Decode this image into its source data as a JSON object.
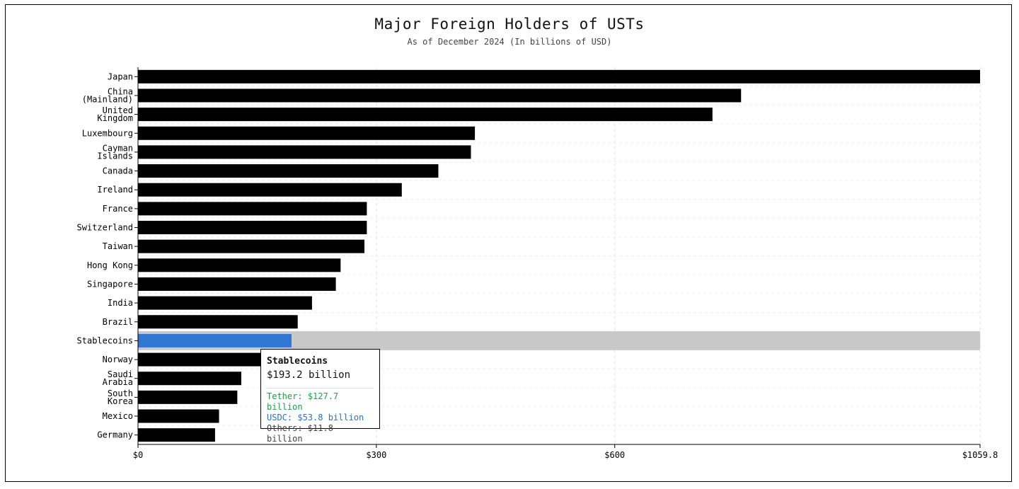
{
  "chart_data": {
    "type": "bar",
    "orientation": "horizontal",
    "title": "Major Foreign Holders of USTs",
    "subtitle": "As of December 2024 (In billions of USD)",
    "xlabel": "",
    "ylabel": "",
    "xlim": [
      0,
      1059.8
    ],
    "x_ticks": [
      {
        "value": 0,
        "label": "$0"
      },
      {
        "value": 300,
        "label": "$300"
      },
      {
        "value": 600,
        "label": "$600"
      },
      {
        "value": 1059.8,
        "label": "$1059.8"
      }
    ],
    "grid": true,
    "categories": [
      [
        "Japan"
      ],
      [
        "China",
        "(Mainland)"
      ],
      [
        "United",
        "Kingdom"
      ],
      [
        "Luxembourg"
      ],
      [
        "Cayman",
        "Islands"
      ],
      [
        "Canada"
      ],
      [
        "Ireland"
      ],
      [
        "France"
      ],
      [
        "Switzerland"
      ],
      [
        "Taiwan"
      ],
      [
        "Hong Kong"
      ],
      [
        "Singapore"
      ],
      [
        "India"
      ],
      [
        "Brazil"
      ],
      [
        "Stablecoins"
      ],
      [
        "Norway"
      ],
      [
        "Saudi",
        "Arabia"
      ],
      [
        "South",
        "Korea"
      ],
      [
        "Mexico"
      ],
      [
        "Germany"
      ]
    ],
    "values": [
      1059.8,
      759.0,
      723.0,
      424.0,
      419.0,
      378.0,
      332.0,
      288.0,
      288.0,
      285.0,
      255.0,
      249.0,
      219.0,
      201.0,
      193.2,
      190.0,
      130.0,
      125.0,
      102.0,
      97.0
    ],
    "highlighted_index": 14,
    "colors": {
      "bar": "#000000",
      "highlight": "#2f77d0",
      "highlight_band": "#c8c8c8"
    }
  },
  "tooltip": {
    "title": "Stablecoins",
    "total": "$193.2 billion",
    "lines": [
      {
        "text": "Tether: $127.7 billion",
        "color": "#1e9e4a"
      },
      {
        "text": "USDC: $53.8 billion",
        "color": "#2f6fc4"
      },
      {
        "text": "Others: $11.8 billion",
        "color": "#444444"
      }
    ]
  }
}
